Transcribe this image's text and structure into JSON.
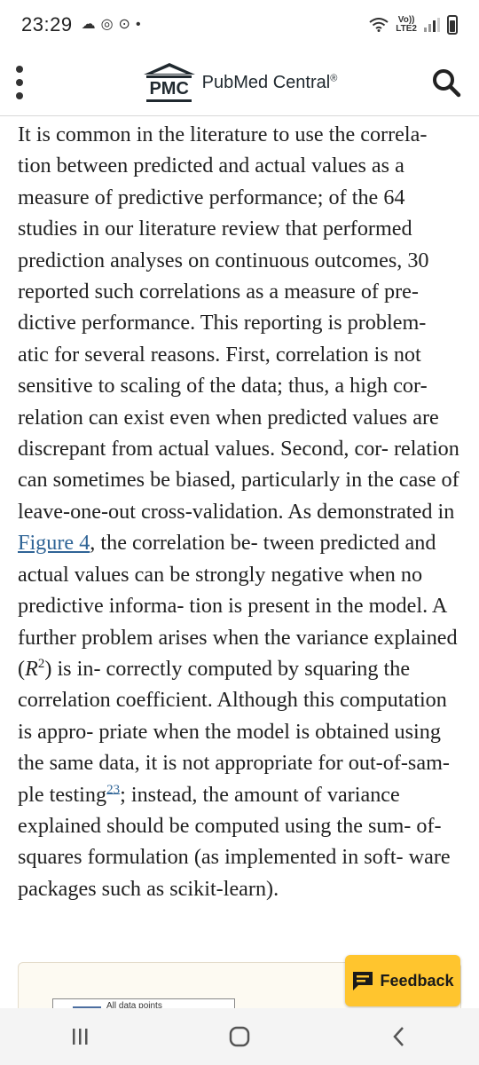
{
  "status_bar": {
    "time": "23:29",
    "volte_top": "Vo))",
    "volte_bottom": "LTE2"
  },
  "header": {
    "logo_mark": "PMC",
    "logo_name": "PubMed Central",
    "logo_reg": "®"
  },
  "article": {
    "t1": "It is common in the literature to use the correla- tion between predicted and actual values as a measure of predictive performance; of the 64 studies in our literature review that performed prediction analyses on continuous outcomes, 30 reported such correlations as a measure of pre- dictive performance. This reporting is problem- atic for several reasons. First, correlation is not sensitive to scaling of the data; thus, a high cor- relation can exist even when predicted values are discrepant from actual values. Second, cor- relation can sometimes be biased, particularly in the case of leave-one-out cross-validation. As demonstrated in ",
    "figure_link": "Figure 4",
    "t2": ", the correlation be- tween predicted and actual values can be strongly negative when no predictive informa- tion is present in the model. A further problem arises when the variance explained (",
    "r_symbol": "R",
    "r_exp": "2",
    "t3": ") is in- correctly computed by squaring the correlation coefficient. Although this computation is appro- priate when the model is obtained using the same data, it is not appropriate for out-of-sam- ple testing",
    "citation": "23",
    "t4": "; instead, the amount of variance explained should be computed using the sum- of-squares formulation (as implemented in soft- ware packages such as scikit-learn)."
  },
  "figure_preview": {
    "legend": "All data points"
  },
  "feedback": {
    "label": "Feedback"
  },
  "colors": {
    "link": "#2f6496",
    "feedback_bg": "#ffc52e",
    "text": "#212121"
  }
}
